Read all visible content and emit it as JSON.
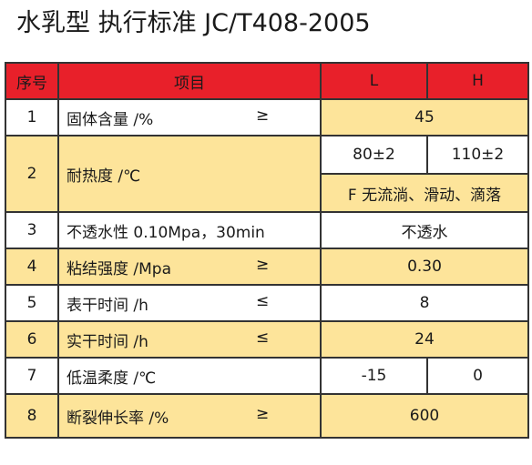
{
  "title": "水乳型  执行标准 JC/T408-2005",
  "header": {
    "no": "序号",
    "item": "项目",
    "l": "L",
    "h": "H"
  },
  "rows": [
    {
      "no": "1",
      "item": "固体含量 /%",
      "op": "≥",
      "value": "45"
    },
    {
      "no": "2",
      "item": "耐热度 /℃",
      "l": "80±2",
      "h": "110±2",
      "note": "F 无流淌、滑动、滴落"
    },
    {
      "no": "3",
      "item": "不透水性 0.10Mpa，30min",
      "value": "不透水"
    },
    {
      "no": "4",
      "item": "粘结强度 /Mpa",
      "op": "≥",
      "value": "0.30"
    },
    {
      "no": "5",
      "item": "表干时间 /h",
      "op": "≤",
      "value": "8"
    },
    {
      "no": "6",
      "item": "实干时间 /h",
      "op": "≤",
      "value": "24"
    },
    {
      "no": "7",
      "item": "低温柔度 /℃",
      "l": "-15",
      "h": "0"
    },
    {
      "no": "8",
      "item": "断裂伸长率 /%",
      "op": "≥",
      "value": "600"
    }
  ]
}
